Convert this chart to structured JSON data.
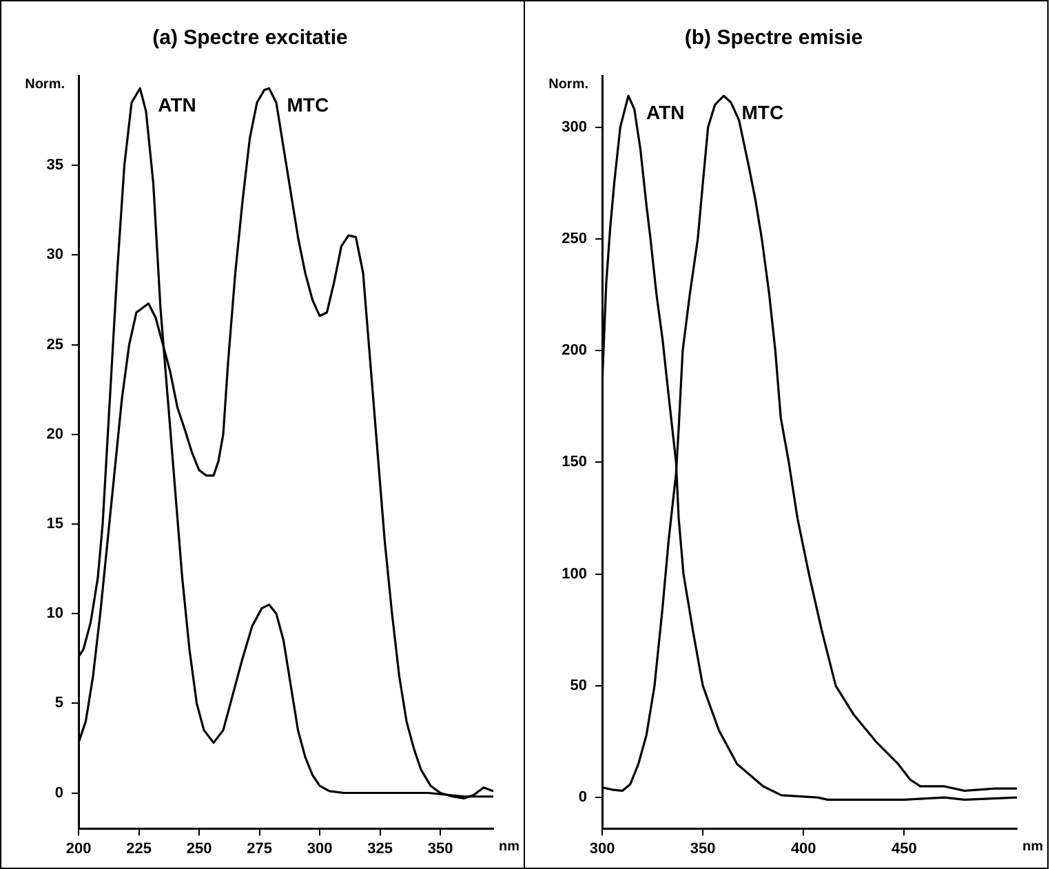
{
  "chart_data": [
    {
      "type": "line",
      "title": "(a) Spectre excitatie",
      "xlabel": "nm",
      "ylabel": "Norm.",
      "xlim": [
        200,
        372
      ],
      "xticks": [
        200,
        225,
        250,
        275,
        300,
        325,
        350
      ],
      "ylim": [
        -2,
        40
      ],
      "yticks": [
        0,
        5,
        10,
        15,
        20,
        25,
        30,
        35
      ],
      "grid": false,
      "legend": false,
      "marker": "none",
      "line_style": "solid",
      "series": [
        {
          "name": "ATN",
          "color": "#000000",
          "x": [
            200,
            202,
            205,
            208,
            210,
            213,
            216,
            219,
            222,
            225.5,
            228,
            231,
            234,
            237,
            240,
            243,
            246,
            249,
            252,
            256,
            260,
            264,
            268,
            272,
            276,
            279,
            282,
            285,
            288,
            291,
            294,
            297,
            300,
            304,
            310,
            330,
            345,
            360,
            372
          ],
          "values": [
            7.6,
            8,
            9.5,
            12,
            15,
            22,
            29,
            35,
            38.5,
            39.3,
            38,
            34,
            27,
            22,
            17,
            12,
            8,
            5,
            3.5,
            2.8,
            3.5,
            5.5,
            7.5,
            9.3,
            10.3,
            10.5,
            10,
            8.5,
            6,
            3.5,
            2,
            1,
            0.4,
            0.1,
            0,
            0,
            0,
            -0.2,
            -0.2
          ]
        },
        {
          "name": "MTC",
          "color": "#000000",
          "x": [
            200,
            203,
            206,
            209,
            212,
            215,
            218,
            221,
            224,
            229,
            232,
            235,
            238,
            241,
            244,
            247,
            250,
            253,
            256,
            258,
            260,
            262,
            265,
            268,
            271,
            274,
            277,
            279,
            282,
            285,
            288,
            291,
            294,
            297,
            300,
            303,
            306,
            309,
            312,
            315,
            318,
            321,
            324,
            327,
            330,
            333,
            336,
            339,
            342,
            346,
            350,
            355,
            360,
            364,
            368,
            372
          ],
          "values": [
            2.8,
            4,
            6.5,
            10,
            14,
            18,
            22,
            25,
            26.8,
            27.3,
            26.5,
            25,
            23.5,
            21.5,
            20.3,
            19,
            18,
            17.7,
            17.7,
            18.5,
            20,
            24,
            29,
            33,
            36.5,
            38.5,
            39.2,
            39.3,
            38.5,
            36,
            33.5,
            31,
            29,
            27.5,
            26.6,
            26.8,
            28.5,
            30.5,
            31.1,
            31,
            29,
            24,
            19,
            14,
            10,
            6.5,
            4,
            2.5,
            1.3,
            0.4,
            0,
            -0.2,
            -0.3,
            -0.1,
            0.3,
            0.1
          ]
        }
      ]
    },
    {
      "type": "line",
      "title": "(b) Spectre emisie",
      "xlabel": "nm",
      "ylabel": "Norm.",
      "xlim": [
        300,
        506
      ],
      "xticks": [
        300,
        350,
        400,
        450
      ],
      "ylim": [
        -14,
        323
      ],
      "yticks": [
        0,
        50,
        100,
        150,
        200,
        250,
        300
      ],
      "grid": false,
      "legend": false,
      "marker": "none",
      "line_style": "solid",
      "series": [
        {
          "name": "ATN",
          "color": "#000000",
          "x": [
            300,
            302,
            304,
            306,
            309,
            313,
            316,
            319,
            322,
            324,
            327,
            330,
            333,
            336.7,
            338,
            340.4,
            345,
            350,
            358,
            367,
            380,
            389,
            407,
            412,
            450,
            470,
            480,
            506
          ],
          "values": [
            185,
            230,
            255,
            275,
            300,
            314,
            308,
            290,
            265,
            250,
            225,
            205,
            180,
            150,
            125,
            100,
            75,
            50,
            30,
            15,
            5,
            1,
            0,
            -1,
            -1,
            0,
            -1,
            0
          ]
        },
        {
          "name": "MTC",
          "color": "#000000",
          "x": [
            300,
            305,
            310,
            314,
            318,
            322,
            326,
            330,
            333,
            336.7,
            338,
            340,
            343.5,
            347.5,
            350,
            352.6,
            356,
            360.4,
            364,
            368,
            372.7,
            376,
            379.3,
            383,
            386,
            388.7,
            392.7,
            397,
            402.7,
            409,
            416,
            425,
            436,
            447,
            453,
            458,
            470,
            480,
            495,
            506
          ],
          "values": [
            4.5,
            3.5,
            3,
            6,
            15,
            28,
            50,
            85,
            115,
            145,
            165,
            200,
            225,
            250,
            275,
            300,
            310,
            314,
            311,
            303,
            283,
            268,
            250,
            225,
            200,
            170,
            150,
            125,
            100,
            75,
            50,
            37,
            25,
            15,
            8,
            5,
            5,
            3,
            4,
            4
          ]
        }
      ]
    }
  ]
}
